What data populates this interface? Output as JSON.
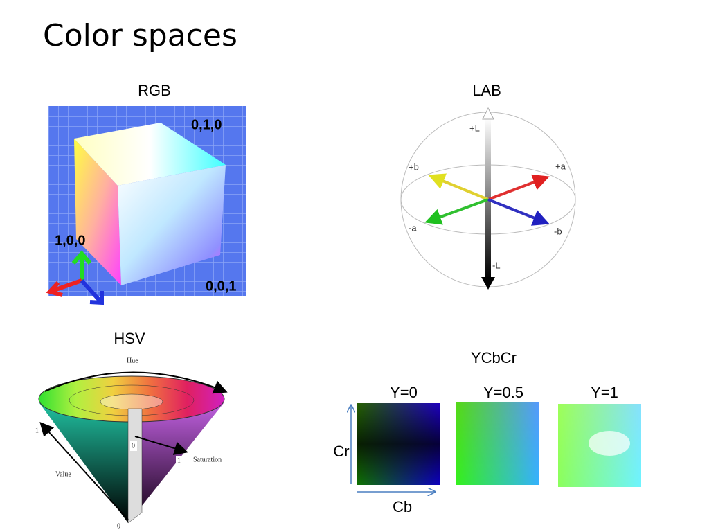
{
  "title": "Color spaces",
  "panels": [
    {
      "label": "RGB",
      "annotations": [
        "0,1,0",
        "1,0,0",
        "0,0,1"
      ]
    },
    {
      "label": "LAB",
      "annotations": [
        "+L",
        "-L",
        "+a",
        "-a",
        "+b",
        "-b"
      ]
    },
    {
      "label": "HSV",
      "annotations": [
        "Hue",
        "1",
        "Value",
        "0",
        "0",
        "1",
        "Saturation"
      ]
    },
    {
      "label": "YCbCr",
      "planes": [
        "Y=0",
        "Y=0.5",
        "Y=1"
      ],
      "axes": [
        "Cr",
        "Cb"
      ]
    }
  ]
}
